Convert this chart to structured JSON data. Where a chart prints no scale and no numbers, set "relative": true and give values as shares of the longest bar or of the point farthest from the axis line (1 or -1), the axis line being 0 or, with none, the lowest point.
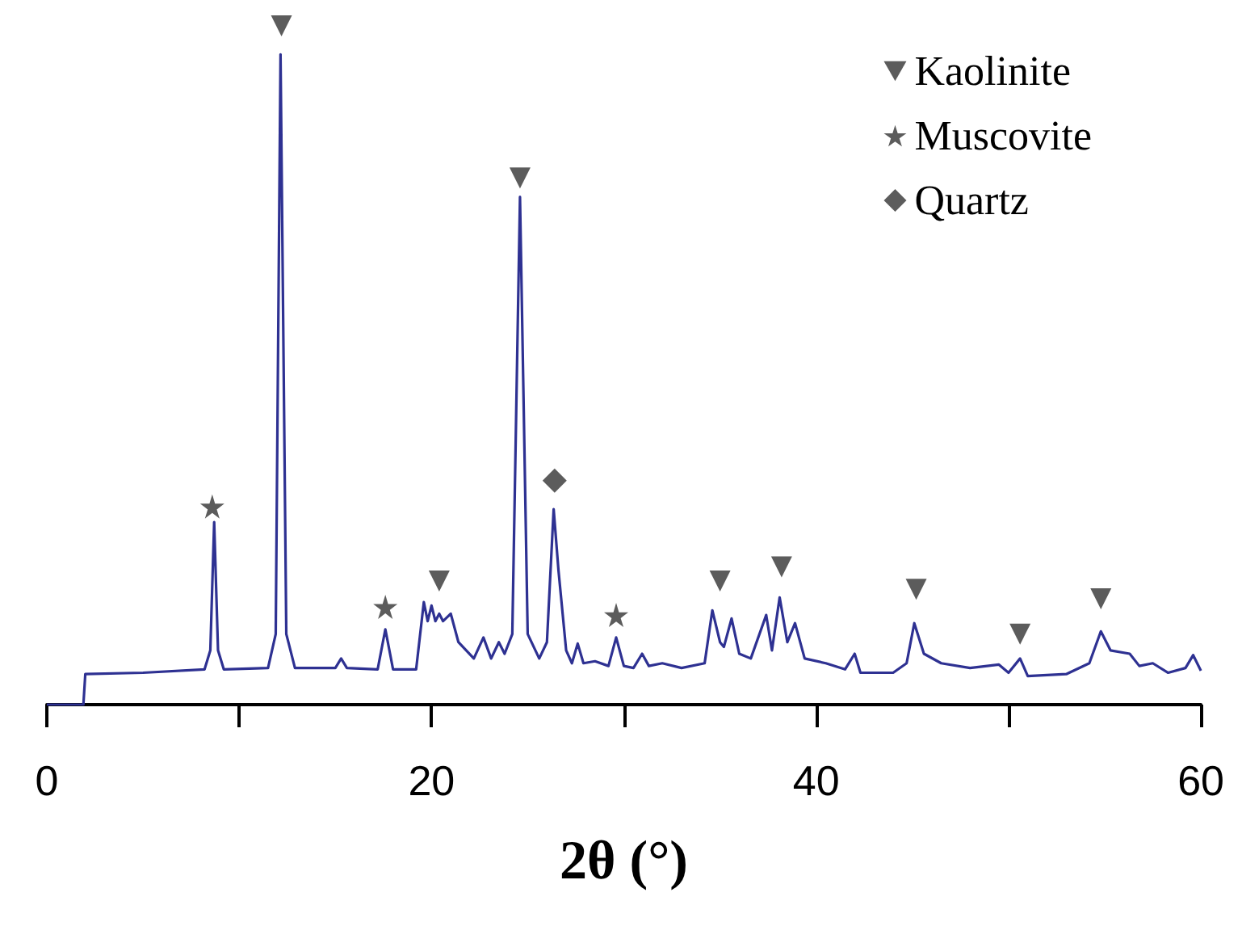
{
  "chart_data": {
    "type": "line",
    "relative": true,
    "xlabel": "2θ (°)",
    "xlim": [
      0,
      60
    ],
    "xticks": [
      0,
      {
        "value": 10,
        "label": null
      },
      20,
      {
        "value": 30,
        "label": null
      },
      40,
      {
        "value": 50,
        "label": null
      },
      60
    ],
    "grid": false,
    "legend": "top right",
    "series": [
      {
        "color": "#2e3192",
        "marker": "none",
        "x": [
          0,
          1.9,
          2.0,
          5,
          8.2,
          8.5,
          8.7,
          8.9,
          9.2,
          11.5,
          11.9,
          12.15,
          12.45,
          12.9,
          15,
          15.3,
          15.6,
          17.2,
          17.6,
          18,
          19.2,
          19.6,
          19.8,
          20.0,
          20.2,
          20.4,
          20.6,
          21.0,
          21.4,
          22.2,
          22.7,
          23.1,
          23.5,
          23.8,
          24.2,
          24.6,
          25.0,
          25.6,
          26.0,
          26.35,
          26.6,
          27.0,
          27.3,
          27.6,
          27.9,
          28.5,
          29.2,
          29.6,
          30.0,
          30.5,
          30.95,
          31.3,
          32,
          33,
          34.2,
          34.6,
          35.0,
          35.2,
          35.6,
          36.0,
          36.6,
          37.4,
          37.7,
          38.1,
          38.5,
          38.9,
          39.4,
          40.5,
          41.5,
          42.0,
          42.3,
          44,
          44.7,
          45.1,
          45.6,
          46.5,
          48,
          49.5,
          50,
          50.6,
          51,
          53,
          54.2,
          54.8,
          55.3,
          56.3,
          56.8,
          57.5,
          58.3,
          59.2,
          59.6,
          60
        ],
        "values": [
          0,
          0,
          0.045,
          0.047,
          0.052,
          0.08,
          0.269,
          0.08,
          0.052,
          0.054,
          0.104,
          0.958,
          0.104,
          0.054,
          0.054,
          0.068,
          0.054,
          0.052,
          0.111,
          0.052,
          0.052,
          0.151,
          0.123,
          0.146,
          0.123,
          0.134,
          0.123,
          0.134,
          0.092,
          0.068,
          0.099,
          0.068,
          0.092,
          0.075,
          0.104,
          0.748,
          0.104,
          0.068,
          0.092,
          0.288,
          0.198,
          0.08,
          0.061,
          0.09,
          0.061,
          0.064,
          0.057,
          0.099,
          0.057,
          0.054,
          0.075,
          0.057,
          0.061,
          0.054,
          0.061,
          0.139,
          0.092,
          0.085,
          0.127,
          0.075,
          0.068,
          0.132,
          0.08,
          0.158,
          0.092,
          0.12,
          0.068,
          0.061,
          0.052,
          0.075,
          0.047,
          0.047,
          0.061,
          0.12,
          0.075,
          0.061,
          0.054,
          0.059,
          0.047,
          0.068,
          0.042,
          0.045,
          0.061,
          0.108,
          0.08,
          0.075,
          0.057,
          0.061,
          0.047,
          0.054,
          0.073,
          0.05
        ]
      },
      {
        "type": "scatter",
        "name": "Kaolinite",
        "color": "#333333",
        "marker": "triangle",
        "x": [
          12.2,
          20.4,
          24.6,
          35.0,
          38.2,
          45.2,
          50.6,
          54.8
        ],
        "values": [
          1.0,
          0.182,
          0.776,
          0.182,
          0.203,
          0.17,
          0.104,
          0.156
        ]
      },
      {
        "type": "scatter",
        "name": "Muscovite",
        "color": "#333333",
        "marker": "star",
        "x": [
          8.6,
          17.6,
          29.6
        ],
        "values": [
          0.292,
          0.144,
          0.132
        ]
      },
      {
        "type": "scatter",
        "name": "Quartz",
        "color": "#333333",
        "marker": "diamond",
        "x": [
          26.4
        ],
        "values": [
          0.33
        ]
      }
    ]
  }
}
